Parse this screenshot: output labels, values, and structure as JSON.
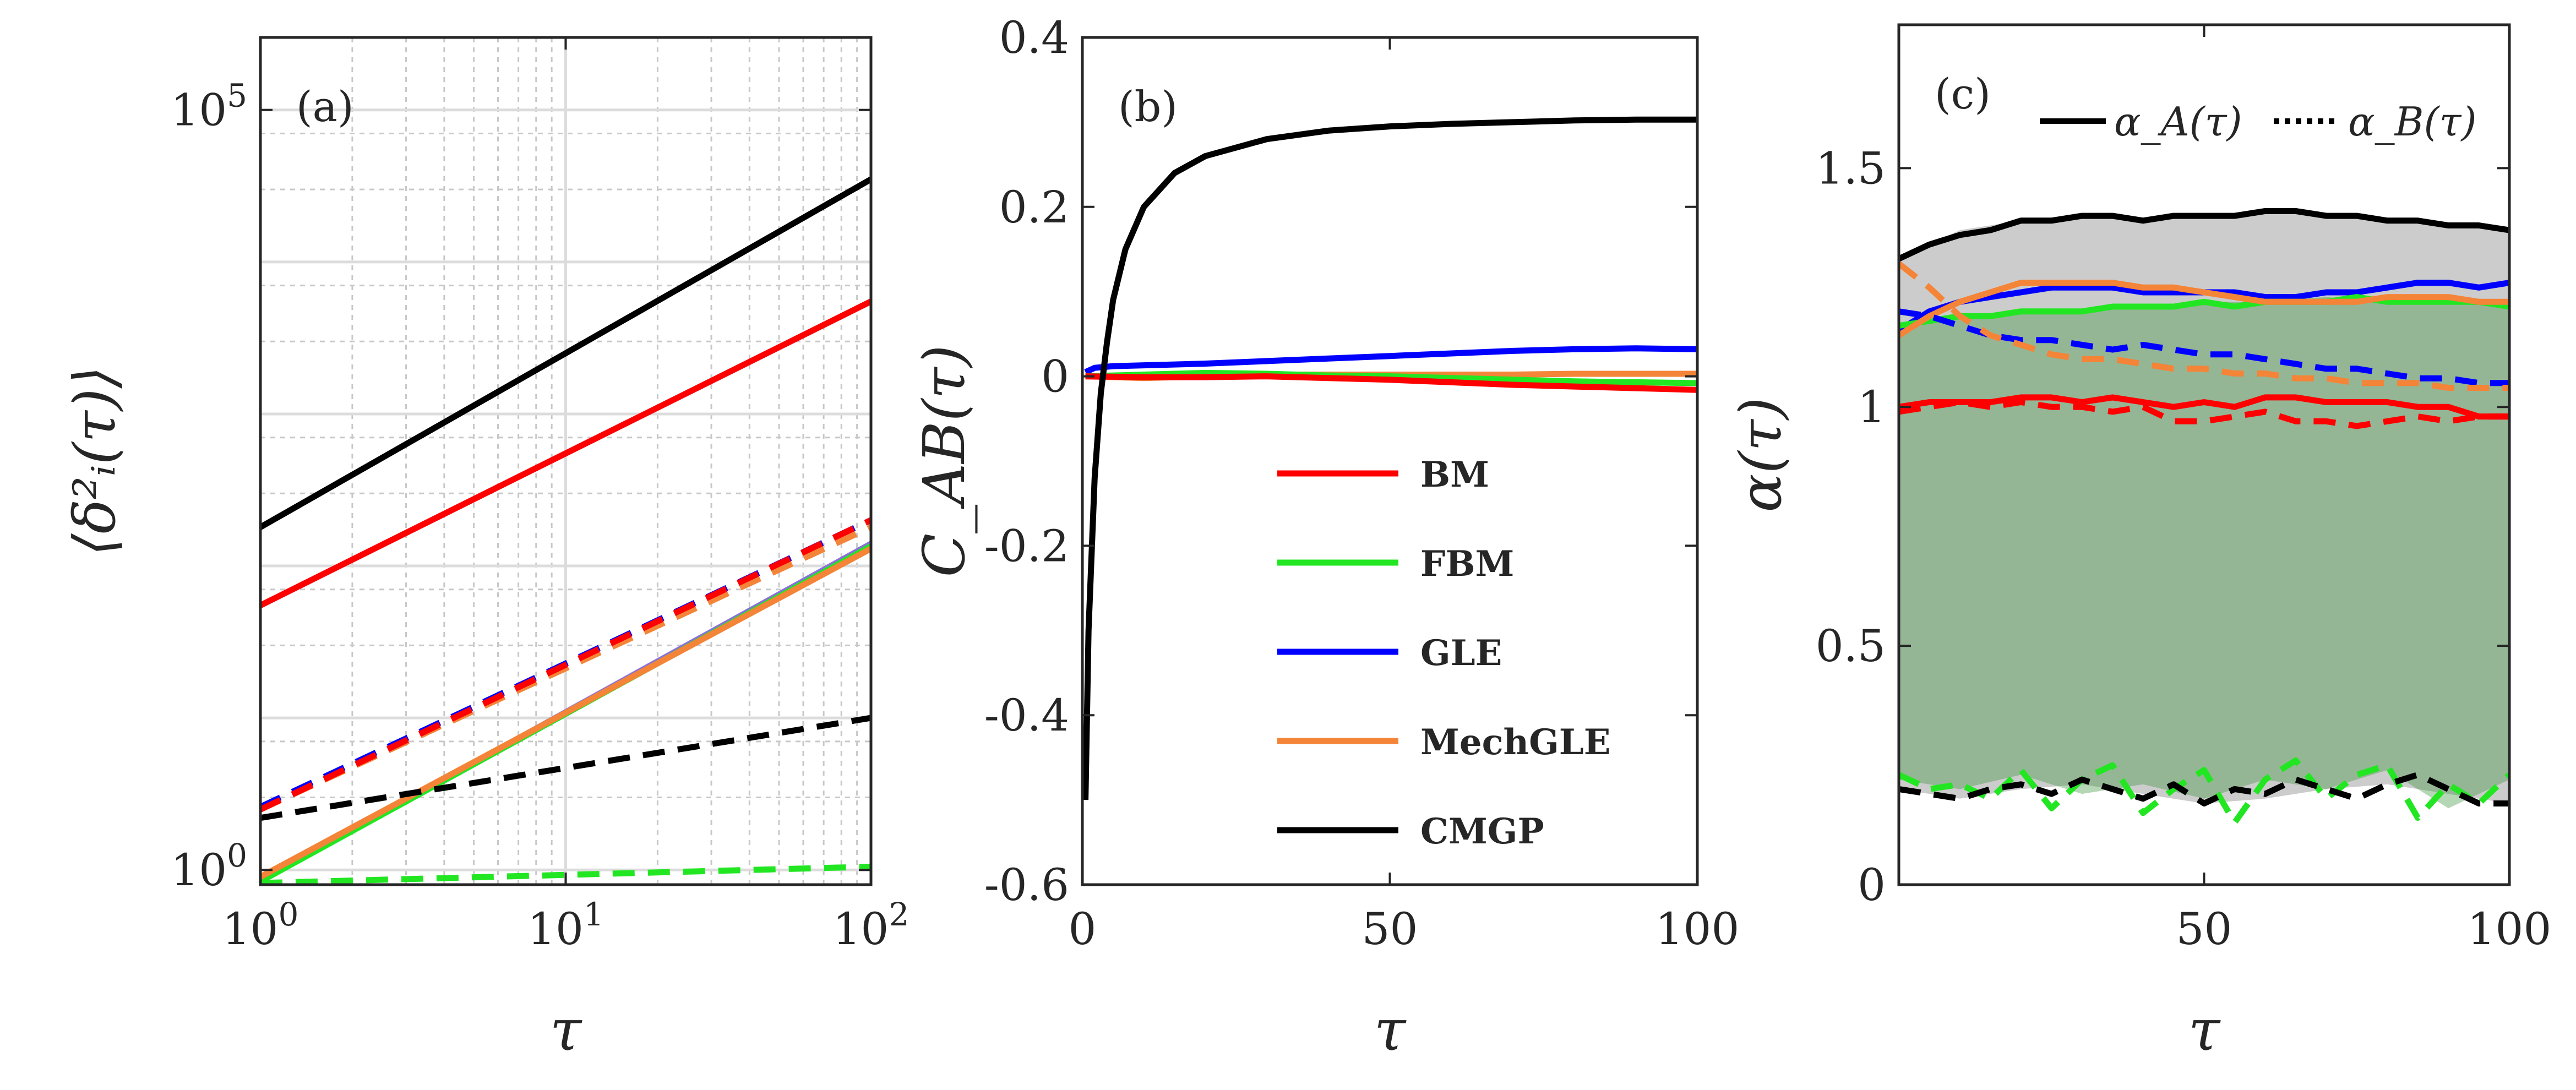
{
  "figure_title": "",
  "chart_data": [
    {
      "id": "a",
      "type": "line",
      "panel_label": "(a)",
      "xscale": "log",
      "yscale": "log",
      "xlim": [
        1,
        100
      ],
      "ylim": [
        0.8,
        300000
      ],
      "xlabel": "τ",
      "ylabel": "⟨δ²ᵢ(τ)⟩",
      "grid": true,
      "xticks": [
        {
          "v": 1,
          "m": "10",
          "e": "0"
        },
        {
          "v": 10,
          "m": "10",
          "e": "1"
        },
        {
          "v": 100,
          "m": "10",
          "e": "2"
        }
      ],
      "yticks": [
        {
          "v": 1,
          "m": "10",
          "e": "0"
        },
        {
          "v": 100000,
          "m": "10",
          "e": "5"
        }
      ],
      "series": [
        {
          "name": "CMGP A",
          "color": "#000000",
          "dash": "solid",
          "x": [
            1,
            100
          ],
          "y": [
            180,
            35000
          ]
        },
        {
          "name": "BM A",
          "color": "#ff0000",
          "dash": "solid",
          "x": [
            1,
            100
          ],
          "y": [
            55,
            5500
          ]
        },
        {
          "name": "GLE B",
          "color": "#0000ff",
          "dash": "dashed",
          "x": [
            1,
            100
          ],
          "y": [
            2.6,
            200
          ]
        },
        {
          "name": "MechGLE B",
          "color": "#f48437",
          "dash": "dashed",
          "x": [
            1,
            100
          ],
          "y": [
            2.5,
            180
          ]
        },
        {
          "name": "BM B",
          "color": "#ff0000",
          "dash": "dashed",
          "x": [
            1,
            100
          ],
          "y": [
            2.5,
            200
          ]
        },
        {
          "name": "GLE A",
          "color": "#8a70d8",
          "dash": "solid",
          "x": [
            1,
            100
          ],
          "y": [
            0.85,
            140
          ]
        },
        {
          "name": "FBM A",
          "color": "#22e622",
          "dash": "solid",
          "x": [
            1,
            100
          ],
          "y": [
            0.84,
            135
          ]
        },
        {
          "name": "MechGLE A",
          "color": "#f48437",
          "dash": "solid",
          "x": [
            1,
            100
          ],
          "y": [
            0.9,
            130
          ]
        },
        {
          "name": "CMGP B",
          "color": "#000000",
          "dash": "dashed",
          "x": [
            1,
            100
          ],
          "y": [
            2.2,
            10
          ]
        },
        {
          "name": "FBM B",
          "color": "#22e622",
          "dash": "dashed",
          "x": [
            1,
            100
          ],
          "y": [
            0.82,
            1.05
          ]
        }
      ]
    },
    {
      "id": "b",
      "type": "line",
      "panel_label": "(b)",
      "xlim": [
        0,
        100
      ],
      "ylim": [
        -0.6,
        0.4
      ],
      "xlabel": "τ",
      "ylabel": "C_AB(τ)",
      "grid": false,
      "xticks": [
        {
          "v": 0,
          "t": "0"
        },
        {
          "v": 50,
          "t": "50"
        },
        {
          "v": 100,
          "t": "100"
        }
      ],
      "yticks": [
        {
          "v": -0.6,
          "t": "-0.6"
        },
        {
          "v": -0.4,
          "t": "-0.4"
        },
        {
          "v": -0.2,
          "t": "-0.2"
        },
        {
          "v": 0,
          "t": "0"
        },
        {
          "v": 0.2,
          "t": "0.2"
        },
        {
          "v": 0.4,
          "t": "0.4"
        }
      ],
      "legend": {
        "position": "center-right",
        "entries": [
          {
            "label": "BM",
            "color": "#ff0000"
          },
          {
            "label": "FBM",
            "color": "#22e622"
          },
          {
            "label": "GLE",
            "color": "#0000ff"
          },
          {
            "label": "MechGLE",
            "color": "#f48437"
          },
          {
            "label": "CMGP",
            "color": "#000000"
          }
        ]
      },
      "series": [
        {
          "name": "GLE",
          "color": "#0000ff",
          "x": [
            0.5,
            2,
            5,
            10,
            20,
            30,
            40,
            50,
            60,
            70,
            80,
            90,
            100
          ],
          "y": [
            0.005,
            0.01,
            0.012,
            0.013,
            0.015,
            0.018,
            0.021,
            0.024,
            0.027,
            0.03,
            0.032,
            0.033,
            0.032
          ]
        },
        {
          "name": "MechGLE",
          "color": "#f48437",
          "x": [
            0.5,
            10,
            20,
            30,
            40,
            50,
            60,
            70,
            80,
            90,
            100
          ],
          "y": [
            0,
            -0.002,
            0,
            0.002,
            0.002,
            0.002,
            0.002,
            0.002,
            0.003,
            0.003,
            0.003
          ]
        },
        {
          "name": "FBM",
          "color": "#22e622",
          "x": [
            0.5,
            10,
            20,
            30,
            40,
            50,
            60,
            70,
            80,
            90,
            100
          ],
          "y": [
            0,
            0.002,
            0.004,
            0.003,
            0.001,
            0,
            -0.002,
            -0.004,
            -0.006,
            -0.007,
            -0.008
          ]
        },
        {
          "name": "BM",
          "color": "#ff0000",
          "x": [
            0.5,
            10,
            20,
            30,
            40,
            50,
            60,
            70,
            80,
            90,
            100
          ],
          "y": [
            0,
            -0.001,
            -0.001,
            0,
            -0.002,
            -0.004,
            -0.007,
            -0.01,
            -0.012,
            -0.014,
            -0.016
          ]
        },
        {
          "name": "CMGP",
          "color": "#000000",
          "x": [
            0.5,
            1,
            2,
            3,
            4,
            5,
            7,
            10,
            15,
            20,
            30,
            40,
            50,
            60,
            70,
            80,
            90,
            100
          ],
          "y": [
            -0.5,
            -0.3,
            -0.12,
            -0.02,
            0.04,
            0.09,
            0.15,
            0.2,
            0.24,
            0.26,
            0.28,
            0.29,
            0.295,
            0.298,
            0.3,
            0.302,
            0.303,
            0.303
          ]
        }
      ]
    },
    {
      "id": "c",
      "type": "line",
      "panel_label": "(c)",
      "xlim": [
        0,
        100
      ],
      "ylim": [
        0,
        1.8
      ],
      "xlabel": "τ",
      "ylabel": "α(τ)",
      "grid": false,
      "xticks": [
        {
          "v": 50,
          "t": "50"
        },
        {
          "v": 100,
          "t": "100"
        }
      ],
      "yticks": [
        {
          "v": 0,
          "t": "0"
        },
        {
          "v": 0.5,
          "t": "0.5"
        },
        {
          "v": 1,
          "t": "1"
        },
        {
          "v": 1.5,
          "t": "1.5"
        }
      ],
      "legend": {
        "position": "top",
        "entries": [
          {
            "label": "α_A(τ)",
            "style": "solid"
          },
          {
            "label": "α_B(τ)",
            "style": "dotted"
          }
        ]
      },
      "bands": [
        {
          "name": "CMGP region",
          "color": "#6e6e6e",
          "opacity": 0.35,
          "x": [
            0,
            10,
            20,
            30,
            40,
            50,
            60,
            70,
            80,
            90,
            100
          ],
          "upper": [
            1.31,
            1.37,
            1.39,
            1.4,
            1.39,
            1.4,
            1.41,
            1.4,
            1.39,
            1.38,
            1.37
          ],
          "lower": [
            0.2,
            0.18,
            0.2,
            0.21,
            0.19,
            0.17,
            0.18,
            0.2,
            0.21,
            0.19,
            0.17
          ]
        },
        {
          "name": "FBM region",
          "color": "#2e8b2e",
          "opacity": 0.35,
          "x": [
            0,
            10,
            20,
            30,
            40,
            50,
            60,
            70,
            80,
            90,
            100
          ],
          "upper": [
            1.17,
            1.19,
            1.2,
            1.2,
            1.21,
            1.22,
            1.22,
            1.23,
            1.22,
            1.22,
            1.21
          ],
          "lower": [
            0.22,
            0.2,
            0.23,
            0.19,
            0.21,
            0.18,
            0.22,
            0.2,
            0.24,
            0.16,
            0.22
          ]
        }
      ],
      "series": [
        {
          "name": "CMGP A",
          "color": "#000000",
          "dash": "solid",
          "x": [
            0,
            5,
            10,
            15,
            20,
            25,
            30,
            35,
            40,
            45,
            50,
            55,
            60,
            65,
            70,
            75,
            80,
            85,
            90,
            95,
            100
          ],
          "y": [
            1.31,
            1.34,
            1.36,
            1.37,
            1.39,
            1.39,
            1.4,
            1.4,
            1.39,
            1.4,
            1.4,
            1.4,
            1.41,
            1.41,
            1.4,
            1.4,
            1.39,
            1.39,
            1.38,
            1.38,
            1.37
          ]
        },
        {
          "name": "GLE A",
          "color": "#0000ff",
          "dash": "solid",
          "x": [
            0,
            5,
            10,
            15,
            20,
            25,
            30,
            35,
            40,
            45,
            50,
            55,
            60,
            65,
            70,
            75,
            80,
            85,
            90,
            95,
            100
          ],
          "y": [
            1.16,
            1.2,
            1.22,
            1.23,
            1.24,
            1.25,
            1.25,
            1.25,
            1.24,
            1.24,
            1.24,
            1.24,
            1.23,
            1.23,
            1.24,
            1.24,
            1.25,
            1.26,
            1.26,
            1.25,
            1.26
          ]
        },
        {
          "name": "FBM A",
          "color": "#22e622",
          "dash": "solid",
          "x": [
            0,
            5,
            10,
            15,
            20,
            25,
            30,
            35,
            40,
            45,
            50,
            55,
            60,
            65,
            70,
            75,
            80,
            85,
            90,
            95,
            100
          ],
          "y": [
            1.17,
            1.18,
            1.19,
            1.19,
            1.2,
            1.2,
            1.2,
            1.21,
            1.21,
            1.21,
            1.22,
            1.21,
            1.22,
            1.22,
            1.22,
            1.23,
            1.22,
            1.22,
            1.22,
            1.22,
            1.21
          ]
        },
        {
          "name": "MechGLE A",
          "color": "#f48437",
          "dash": "solid",
          "x": [
            0,
            5,
            10,
            15,
            20,
            25,
            30,
            35,
            40,
            45,
            50,
            55,
            60,
            65,
            70,
            75,
            80,
            85,
            90,
            95,
            100
          ],
          "y": [
            1.15,
            1.19,
            1.22,
            1.24,
            1.26,
            1.26,
            1.26,
            1.26,
            1.25,
            1.25,
            1.24,
            1.23,
            1.22,
            1.22,
            1.22,
            1.22,
            1.23,
            1.23,
            1.23,
            1.22,
            1.22
          ]
        },
        {
          "name": "BM A",
          "color": "#ff0000",
          "dash": "solid",
          "x": [
            0,
            5,
            10,
            15,
            20,
            25,
            30,
            35,
            40,
            45,
            50,
            55,
            60,
            65,
            70,
            75,
            80,
            85,
            90,
            95,
            100
          ],
          "y": [
            1.0,
            1.01,
            1.01,
            1.01,
            1.02,
            1.02,
            1.01,
            1.02,
            1.01,
            1.0,
            1.01,
            1.0,
            1.02,
            1.02,
            1.01,
            1.01,
            1.01,
            1.0,
            1.0,
            0.98,
            0.98
          ]
        },
        {
          "name": "GLE B",
          "color": "#0000ff",
          "dash": "dashed",
          "x": [
            0,
            5,
            10,
            15,
            20,
            25,
            30,
            35,
            40,
            45,
            50,
            55,
            60,
            65,
            70,
            75,
            80,
            85,
            90,
            95,
            100
          ],
          "y": [
            1.2,
            1.19,
            1.17,
            1.15,
            1.14,
            1.14,
            1.13,
            1.12,
            1.13,
            1.12,
            1.11,
            1.11,
            1.1,
            1.09,
            1.08,
            1.08,
            1.07,
            1.06,
            1.06,
            1.05,
            1.05
          ]
        },
        {
          "name": "MechGLE B",
          "color": "#f48437",
          "dash": "dashed",
          "x": [
            0,
            5,
            10,
            15,
            20,
            25,
            30,
            35,
            40,
            45,
            50,
            55,
            60,
            65,
            70,
            75,
            80,
            85,
            90,
            95,
            100
          ],
          "y": [
            1.3,
            1.25,
            1.19,
            1.15,
            1.13,
            1.11,
            1.1,
            1.1,
            1.09,
            1.08,
            1.08,
            1.07,
            1.07,
            1.06,
            1.06,
            1.05,
            1.05,
            1.05,
            1.04,
            1.04,
            1.04
          ]
        },
        {
          "name": "BM B",
          "color": "#ff0000",
          "dash": "dashed",
          "x": [
            0,
            5,
            10,
            15,
            20,
            25,
            30,
            35,
            40,
            45,
            50,
            55,
            60,
            65,
            70,
            75,
            80,
            85,
            90,
            95,
            100
          ],
          "y": [
            0.99,
            1.0,
            1.01,
            1.0,
            1.01,
            1.0,
            1.0,
            0.99,
            1.0,
            0.97,
            0.97,
            0.98,
            0.99,
            0.97,
            0.97,
            0.96,
            0.97,
            0.98,
            0.97,
            0.98,
            0.98
          ]
        },
        {
          "name": "FBM B",
          "color": "#22e622",
          "dash": "dashed",
          "x": [
            0,
            5,
            10,
            15,
            20,
            25,
            30,
            35,
            40,
            45,
            50,
            55,
            60,
            65,
            70,
            75,
            80,
            85,
            90,
            95,
            100
          ],
          "y": [
            0.23,
            0.2,
            0.21,
            0.18,
            0.24,
            0.16,
            0.22,
            0.25,
            0.15,
            0.2,
            0.24,
            0.13,
            0.22,
            0.26,
            0.18,
            0.23,
            0.25,
            0.14,
            0.21,
            0.17,
            0.23
          ]
        },
        {
          "name": "CMGP B",
          "color": "#000000",
          "dash": "dashed",
          "x": [
            0,
            5,
            10,
            15,
            20,
            25,
            30,
            35,
            40,
            45,
            50,
            55,
            60,
            65,
            70,
            75,
            80,
            85,
            90,
            95,
            100
          ],
          "y": [
            0.2,
            0.19,
            0.18,
            0.2,
            0.21,
            0.19,
            0.22,
            0.2,
            0.18,
            0.21,
            0.17,
            0.2,
            0.19,
            0.22,
            0.2,
            0.18,
            0.21,
            0.23,
            0.2,
            0.17,
            0.17
          ]
        }
      ]
    }
  ]
}
